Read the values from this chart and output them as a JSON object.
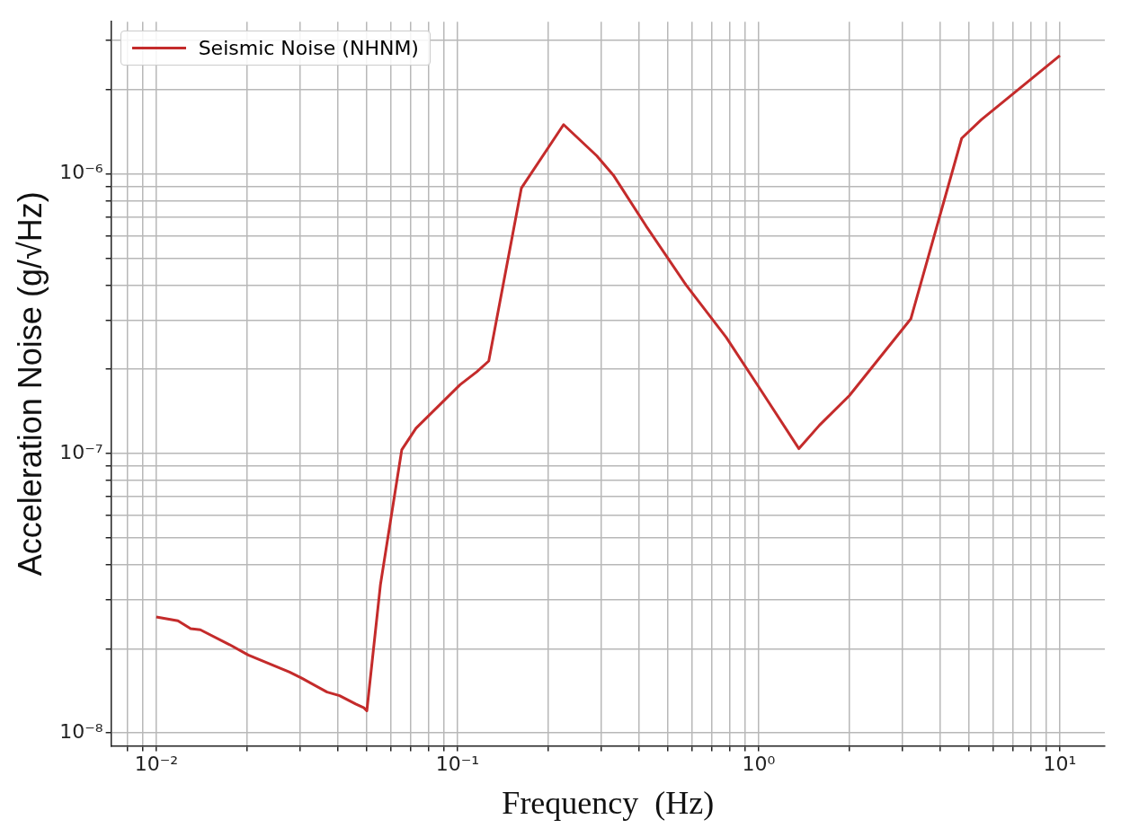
{
  "chart_data": {
    "type": "line",
    "xlabel": "Frequency  (Hz)",
    "ylabel": "Acceleration Noise (g/√Hz)",
    "log": "xy",
    "grid": true,
    "legend": "top left",
    "marker": "none",
    "line_style": "solid",
    "xlim": [
      0.00708,
      14.1
    ],
    "ylim": [
      9.1e-09,
      3.5e-06
    ],
    "xticks": [
      {
        "value": 0.008,
        "label": null
      },
      {
        "value": 0.009,
        "label": null
      },
      {
        "value": 0.01,
        "label": "10⁻²"
      },
      {
        "value": 0.02,
        "label": null
      },
      {
        "value": 0.03,
        "label": null
      },
      {
        "value": 0.04,
        "label": null
      },
      {
        "value": 0.05,
        "label": null
      },
      {
        "value": 0.06,
        "label": null
      },
      {
        "value": 0.07,
        "label": null
      },
      {
        "value": 0.08,
        "label": null
      },
      {
        "value": 0.09,
        "label": null
      },
      {
        "value": 0.1,
        "label": "10⁻¹"
      },
      {
        "value": 0.2,
        "label": null
      },
      {
        "value": 0.3,
        "label": null
      },
      {
        "value": 0.4,
        "label": null
      },
      {
        "value": 0.5,
        "label": null
      },
      {
        "value": 0.6,
        "label": null
      },
      {
        "value": 0.7,
        "label": null
      },
      {
        "value": 0.8,
        "label": null
      },
      {
        "value": 0.9,
        "label": null
      },
      {
        "value": 1,
        "label": "10⁰"
      },
      {
        "value": 2,
        "label": null
      },
      {
        "value": 3,
        "label": null
      },
      {
        "value": 4,
        "label": null
      },
      {
        "value": 5,
        "label": null
      },
      {
        "value": 6,
        "label": null
      },
      {
        "value": 7,
        "label": null
      },
      {
        "value": 8,
        "label": null
      },
      {
        "value": 9,
        "label": null
      },
      {
        "value": 10,
        "label": "10¹"
      }
    ],
    "yticks": [
      {
        "value": 1e-08,
        "label": "10⁻⁸"
      },
      {
        "value": 2e-08,
        "label": null
      },
      {
        "value": 3e-08,
        "label": null
      },
      {
        "value": 4e-08,
        "label": null
      },
      {
        "value": 5e-08,
        "label": null
      },
      {
        "value": 6e-08,
        "label": null
      },
      {
        "value": 7e-08,
        "label": null
      },
      {
        "value": 8e-08,
        "label": null
      },
      {
        "value": 9e-08,
        "label": null
      },
      {
        "value": 1e-07,
        "label": "10⁻⁷"
      },
      {
        "value": 2e-07,
        "label": null
      },
      {
        "value": 3e-07,
        "label": null
      },
      {
        "value": 4e-07,
        "label": null
      },
      {
        "value": 5e-07,
        "label": null
      },
      {
        "value": 6e-07,
        "label": null
      },
      {
        "value": 7e-07,
        "label": null
      },
      {
        "value": 8e-07,
        "label": null
      },
      {
        "value": 9e-07,
        "label": null
      },
      {
        "value": 1e-06,
        "label": "10⁻⁶"
      },
      {
        "value": 2e-06,
        "label": null
      },
      {
        "value": 3e-06,
        "label": null
      }
    ],
    "series": [
      {
        "name": "Seismic Noise (NHNM)",
        "color": "#c42b2b",
        "x": [
          0.01,
          0.0118,
          0.013,
          0.014,
          0.0175,
          0.0202,
          0.0277,
          0.0304,
          0.0369,
          0.0406,
          0.0459,
          0.0489,
          0.05,
          0.0555,
          0.0653,
          0.0728,
          0.102,
          0.116,
          0.127,
          0.163,
          0.225,
          0.29,
          0.329,
          0.423,
          0.574,
          0.78,
          1.0,
          1.36,
          1.59,
          2.0,
          3.2,
          4.72,
          5.48,
          10
        ],
        "values": [
          2.6e-08,
          2.52e-08,
          2.36e-08,
          2.34e-08,
          2.07e-08,
          1.9e-08,
          1.65e-08,
          1.57e-08,
          1.4e-08,
          1.36e-08,
          1.27e-08,
          1.23e-08,
          1.2e-08,
          3.4e-08,
          1.03e-07,
          1.23e-07,
          1.76e-07,
          1.96e-07,
          2.14e-07,
          8.9e-07,
          1.5e-06,
          1.16e-06,
          9.9e-07,
          6.5e-07,
          4e-07,
          2.6e-07,
          1.73e-07,
          1.04e-07,
          1.26e-07,
          1.61e-07,
          3.03e-07,
          1.34e-06,
          1.56e-06,
          2.65e-06
        ]
      }
    ]
  }
}
